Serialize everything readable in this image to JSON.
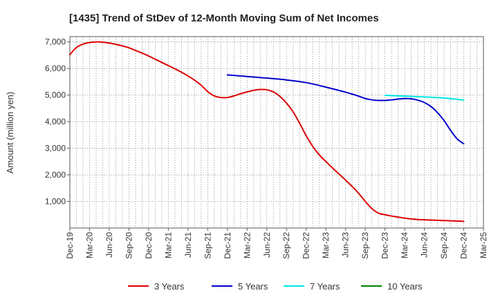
{
  "chart_data": {
    "type": "line",
    "title": "[1435]  Trend of StDev of 12-Month Moving Sum of Net Incomes",
    "xlabel": "",
    "ylabel": "Amount (million yen)",
    "x_ticks": [
      "Dec-19",
      "Mar-20",
      "Jun-20",
      "Sep-20",
      "Dec-20",
      "Mar-21",
      "Jun-21",
      "Sep-21",
      "Dec-21",
      "Mar-22",
      "Jun-22",
      "Sep-22",
      "Dec-22",
      "Mar-23",
      "Jun-23",
      "Sep-23",
      "Dec-23",
      "Mar-24",
      "Jun-24",
      "Sep-24",
      "Dec-24",
      "Mar-25"
    ],
    "y_ticks": [
      1000,
      2000,
      3000,
      4000,
      5000,
      6000,
      7000
    ],
    "y_tick_labels": [
      "1,000",
      "2,000",
      "3,000",
      "4,000",
      "5,000",
      "6,000",
      "7,000"
    ],
    "ylim": [
      0,
      7200
    ],
    "grid": true,
    "legend_position": "bottom",
    "series": [
      {
        "name": "3 Years",
        "color": "#dd0000",
        "points": [
          [
            "Dec-19",
            6520
          ],
          [
            "Jan-20",
            6790
          ],
          [
            "Feb-20",
            6920
          ],
          [
            "Mar-20",
            6980
          ],
          [
            "Apr-20",
            7000
          ],
          [
            "May-20",
            6990
          ],
          [
            "Jun-20",
            6960
          ],
          [
            "Jul-20",
            6910
          ],
          [
            "Aug-20",
            6850
          ],
          [
            "Sep-20",
            6780
          ],
          [
            "Oct-20",
            6680
          ],
          [
            "Nov-20",
            6580
          ],
          [
            "Dec-20",
            6470
          ],
          [
            "Jan-21",
            6350
          ],
          [
            "Feb-21",
            6230
          ],
          [
            "Mar-21",
            6110
          ],
          [
            "Apr-21",
            5990
          ],
          [
            "May-21",
            5860
          ],
          [
            "Jun-21",
            5720
          ],
          [
            "Jul-21",
            5560
          ],
          [
            "Aug-21",
            5370
          ],
          [
            "Sep-21",
            5130
          ],
          [
            "Oct-21",
            4970
          ],
          [
            "Nov-21",
            4910
          ],
          [
            "Dec-21",
            4910
          ],
          [
            "Jan-22",
            4970
          ],
          [
            "Feb-22",
            5050
          ],
          [
            "Mar-22",
            5120
          ],
          [
            "Apr-22",
            5180
          ],
          [
            "May-22",
            5210
          ],
          [
            "Jun-22",
            5200
          ],
          [
            "Jul-22",
            5120
          ],
          [
            "Aug-22",
            4950
          ],
          [
            "Sep-22",
            4700
          ],
          [
            "Oct-22",
            4370
          ],
          [
            "Nov-22",
            3940
          ],
          [
            "Dec-22",
            3470
          ],
          [
            "Jan-23",
            3070
          ],
          [
            "Feb-23",
            2750
          ],
          [
            "Mar-23",
            2500
          ],
          [
            "Apr-23",
            2260
          ],
          [
            "May-23",
            2030
          ],
          [
            "Jun-23",
            1800
          ],
          [
            "Jul-23",
            1560
          ],
          [
            "Aug-23",
            1300
          ],
          [
            "Sep-23",
            1000
          ],
          [
            "Oct-23",
            730
          ],
          [
            "Nov-23",
            560
          ],
          [
            "Dec-23",
            500
          ],
          [
            "Jan-24",
            450
          ],
          [
            "Feb-24",
            410
          ],
          [
            "Mar-24",
            370
          ],
          [
            "Apr-24",
            340
          ],
          [
            "May-24",
            320
          ],
          [
            "Jun-24",
            310
          ],
          [
            "Jul-24",
            300
          ],
          [
            "Aug-24",
            290
          ],
          [
            "Sep-24",
            280
          ],
          [
            "Oct-24",
            270
          ],
          [
            "Nov-24",
            260
          ],
          [
            "Dec-24",
            250
          ]
        ]
      },
      {
        "name": "5 Years",
        "color": "#0000cc",
        "points": [
          [
            "Dec-21",
            5760
          ],
          [
            "Mar-22",
            5700
          ],
          [
            "Jun-22",
            5640
          ],
          [
            "Sep-22",
            5570
          ],
          [
            "Dec-22",
            5470
          ],
          [
            "Mar-23",
            5300
          ],
          [
            "Jun-23",
            5110
          ],
          [
            "Aug-23",
            4960
          ],
          [
            "Sep-23",
            4870
          ],
          [
            "Oct-23",
            4820
          ],
          [
            "Nov-23",
            4800
          ],
          [
            "Dec-23",
            4800
          ],
          [
            "Jan-24",
            4820
          ],
          [
            "Feb-24",
            4850
          ],
          [
            "Mar-24",
            4870
          ],
          [
            "Apr-24",
            4860
          ],
          [
            "May-24",
            4810
          ],
          [
            "Jun-24",
            4720
          ],
          [
            "Jul-24",
            4570
          ],
          [
            "Aug-24",
            4340
          ],
          [
            "Sep-24",
            4040
          ],
          [
            "Oct-24",
            3670
          ],
          [
            "Nov-24",
            3350
          ],
          [
            "Dec-24",
            3170
          ]
        ]
      },
      {
        "name": "7 Years",
        "color": "#00e5e5",
        "points": [
          [
            "Dec-23",
            4990
          ],
          [
            "Mar-24",
            4960
          ],
          [
            "Jun-24",
            4930
          ],
          [
            "Sep-24",
            4890
          ],
          [
            "Nov-24",
            4840
          ],
          [
            "Dec-24",
            4810
          ]
        ]
      },
      {
        "name": "10 Years",
        "color": "#008000",
        "points": []
      }
    ]
  }
}
